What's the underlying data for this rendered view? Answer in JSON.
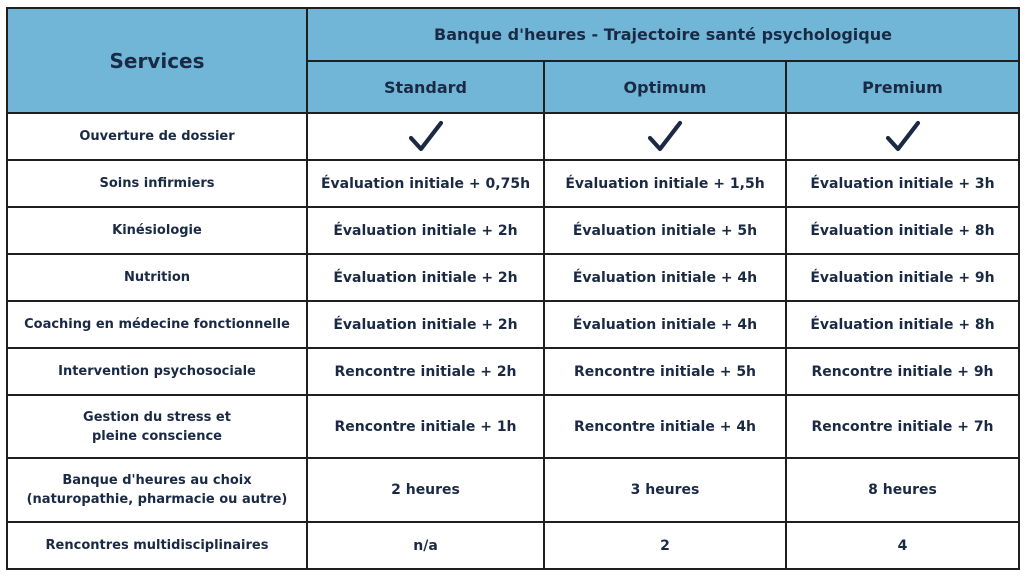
{
  "header": {
    "services": "Services",
    "title": "Banque d'heures - Trajectoire santé psychologique",
    "plans": [
      "Standard",
      "Optimum",
      "Premium"
    ]
  },
  "rows": [
    {
      "service": [
        "Ouverture de dossier"
      ],
      "values": [
        "check",
        "check",
        "check"
      ]
    },
    {
      "service": [
        "Soins infirmiers"
      ],
      "values": [
        "Évaluation initiale + 0,75h",
        "Évaluation initiale + 1,5h",
        "Évaluation initiale + 3h"
      ]
    },
    {
      "service": [
        "Kinésiologie"
      ],
      "values": [
        "Évaluation initiale + 2h",
        "Évaluation initiale + 5h",
        "Évaluation initiale + 8h"
      ]
    },
    {
      "service": [
        "Nutrition"
      ],
      "values": [
        "Évaluation initiale + 2h",
        "Évaluation initiale + 4h",
        "Évaluation initiale + 9h"
      ]
    },
    {
      "service": [
        "Coaching en médecine fonctionnelle"
      ],
      "values": [
        "Évaluation initiale + 2h",
        "Évaluation initiale + 4h",
        "Évaluation initiale + 8h"
      ]
    },
    {
      "service": [
        "Intervention psychosociale"
      ],
      "values": [
        "Rencontre initiale + 2h",
        "Rencontre initiale + 5h",
        "Rencontre initiale + 9h"
      ]
    },
    {
      "service": [
        "Gestion du stress et",
        "pleine conscience"
      ],
      "values": [
        "Rencontre initiale + 1h",
        "Rencontre initiale + 4h",
        "Rencontre initiale + 7h"
      ]
    },
    {
      "service": [
        "Banque d'heures au choix",
        "(naturopathie, pharmacie ou autre)"
      ],
      "values": [
        "2 heures",
        "3 heures",
        "8 heures"
      ]
    },
    {
      "service": [
        "Rencontres multidisciplinaires"
      ],
      "values": [
        "n/a",
        "2",
        "4"
      ]
    }
  ],
  "icons": {
    "check": "checkmark-icon"
  },
  "colors": {
    "header_bg": "#71b6d6",
    "text": "#1b2a44",
    "border": "#1f1f1f"
  }
}
